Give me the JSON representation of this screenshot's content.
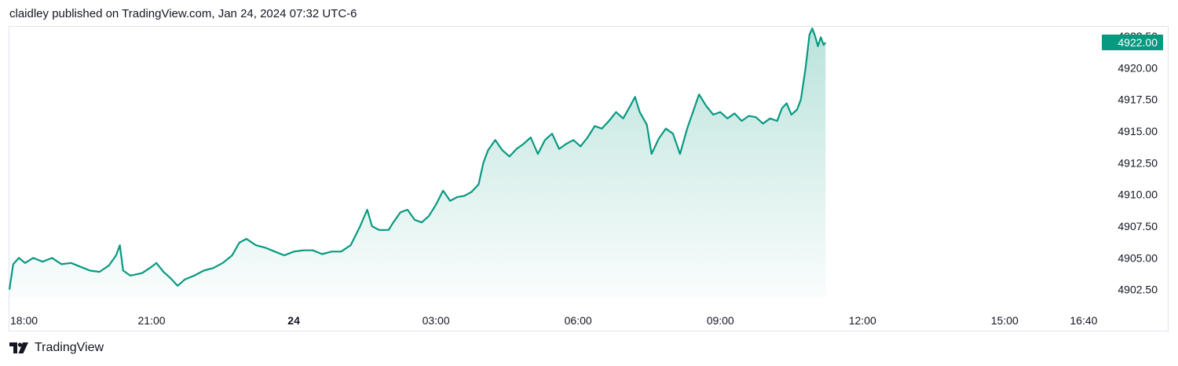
{
  "header": {
    "caption": "claidley published on TradingView.com, Jan 24, 2024 07:32 UTC-6"
  },
  "footer": {
    "brand": "TradingView",
    "logo_icon": "tradingview-logo-icon"
  },
  "colors": {
    "line": "#089981",
    "area_top": "rgba(8,153,129,0.28)",
    "area_bottom": "rgba(8,153,129,0.02)",
    "price_label_bg": "#089981",
    "price_label_text": "#ffffff",
    "axis_text": "#131722",
    "border": "#e0e3eb"
  },
  "chart_data": {
    "type": "area",
    "title": "",
    "xlabel": "",
    "ylabel": "",
    "grid": false,
    "x_ticks": [
      {
        "label": "18:00",
        "h": 0,
        "bold": false
      },
      {
        "label": "21:00",
        "h": 3,
        "bold": false
      },
      {
        "label": "24",
        "h": 6,
        "bold": true
      },
      {
        "label": "03:00",
        "h": 9,
        "bold": false
      },
      {
        "label": "06:00",
        "h": 12,
        "bold": false
      },
      {
        "label": "09:00",
        "h": 15,
        "bold": false
      },
      {
        "label": "12:00",
        "h": 18,
        "bold": false
      },
      {
        "label": "15:00",
        "h": 21,
        "bold": false
      },
      {
        "label": "16:40",
        "h": 22.667,
        "bold": false
      }
    ],
    "x_axis_unit_note_hours_from_1800": true,
    "xlim": [
      0,
      23.0
    ],
    "y_ticks": [
      "4902.50",
      "4905.00",
      "4907.50",
      "4910.00",
      "4912.50",
      "4915.00",
      "4917.50",
      "4920.00",
      "4922.50"
    ],
    "ylim": [
      4901.8,
      4923.3
    ],
    "last_price": "4922.00",
    "last_price_value": 4922.0,
    "series": [
      {
        "points": [
          [
            0.0,
            4902.5
          ],
          [
            0.08,
            4904.5
          ],
          [
            0.2,
            4905.0
          ],
          [
            0.33,
            4904.6
          ],
          [
            0.5,
            4905.0
          ],
          [
            0.7,
            4904.7
          ],
          [
            0.9,
            4905.0
          ],
          [
            1.1,
            4904.5
          ],
          [
            1.3,
            4904.6
          ],
          [
            1.5,
            4904.3
          ],
          [
            1.7,
            4904.0
          ],
          [
            1.9,
            4903.9
          ],
          [
            2.1,
            4904.4
          ],
          [
            2.25,
            4905.2
          ],
          [
            2.33,
            4906.0
          ],
          [
            2.4,
            4904.0
          ],
          [
            2.55,
            4903.6
          ],
          [
            2.8,
            4903.8
          ],
          [
            3.0,
            4904.3
          ],
          [
            3.1,
            4904.6
          ],
          [
            3.25,
            4903.9
          ],
          [
            3.4,
            4903.4
          ],
          [
            3.55,
            4902.8
          ],
          [
            3.7,
            4903.3
          ],
          [
            3.9,
            4903.6
          ],
          [
            4.1,
            4904.0
          ],
          [
            4.3,
            4904.2
          ],
          [
            4.5,
            4904.6
          ],
          [
            4.7,
            4905.2
          ],
          [
            4.85,
            4906.2
          ],
          [
            5.0,
            4906.5
          ],
          [
            5.2,
            4906.0
          ],
          [
            5.4,
            4905.8
          ],
          [
            5.6,
            4905.5
          ],
          [
            5.8,
            4905.2
          ],
          [
            6.0,
            4905.5
          ],
          [
            6.2,
            4905.6
          ],
          [
            6.4,
            4905.6
          ],
          [
            6.6,
            4905.3
          ],
          [
            6.8,
            4905.5
          ],
          [
            7.0,
            4905.5
          ],
          [
            7.2,
            4906.0
          ],
          [
            7.4,
            4907.5
          ],
          [
            7.55,
            4908.8
          ],
          [
            7.65,
            4907.5
          ],
          [
            7.8,
            4907.2
          ],
          [
            8.0,
            4907.2
          ],
          [
            8.1,
            4907.8
          ],
          [
            8.25,
            4908.6
          ],
          [
            8.4,
            4908.8
          ],
          [
            8.55,
            4908.0
          ],
          [
            8.7,
            4907.8
          ],
          [
            8.85,
            4908.3
          ],
          [
            9.0,
            4909.2
          ],
          [
            9.15,
            4910.3
          ],
          [
            9.3,
            4909.5
          ],
          [
            9.45,
            4909.8
          ],
          [
            9.6,
            4909.9
          ],
          [
            9.75,
            4910.2
          ],
          [
            9.9,
            4910.8
          ],
          [
            10.0,
            4912.5
          ],
          [
            10.1,
            4913.5
          ],
          [
            10.25,
            4914.3
          ],
          [
            10.4,
            4913.5
          ],
          [
            10.55,
            4913.0
          ],
          [
            10.7,
            4913.6
          ],
          [
            10.85,
            4914.0
          ],
          [
            11.0,
            4914.5
          ],
          [
            11.15,
            4913.2
          ],
          [
            11.3,
            4914.3
          ],
          [
            11.45,
            4914.8
          ],
          [
            11.6,
            4913.6
          ],
          [
            11.75,
            4914.0
          ],
          [
            11.9,
            4914.3
          ],
          [
            12.05,
            4913.8
          ],
          [
            12.2,
            4914.5
          ],
          [
            12.35,
            4915.4
          ],
          [
            12.5,
            4915.2
          ],
          [
            12.65,
            4915.8
          ],
          [
            12.8,
            4916.5
          ],
          [
            12.95,
            4916.0
          ],
          [
            13.1,
            4917.0
          ],
          [
            13.2,
            4917.7
          ],
          [
            13.3,
            4916.5
          ],
          [
            13.45,
            4915.5
          ],
          [
            13.55,
            4913.2
          ],
          [
            13.7,
            4914.4
          ],
          [
            13.85,
            4915.2
          ],
          [
            14.0,
            4914.8
          ],
          [
            14.15,
            4913.2
          ],
          [
            14.3,
            4915.2
          ],
          [
            14.45,
            4916.8
          ],
          [
            14.55,
            4917.9
          ],
          [
            14.7,
            4917.0
          ],
          [
            14.85,
            4916.3
          ],
          [
            15.0,
            4916.5
          ],
          [
            15.15,
            4916.0
          ],
          [
            15.3,
            4916.4
          ],
          [
            15.45,
            4915.8
          ],
          [
            15.6,
            4916.2
          ],
          [
            15.75,
            4916.1
          ],
          [
            15.9,
            4915.6
          ],
          [
            16.05,
            4916.0
          ],
          [
            16.2,
            4915.8
          ],
          [
            16.3,
            4916.8
          ],
          [
            16.4,
            4917.2
          ],
          [
            16.5,
            4916.3
          ],
          [
            16.62,
            4916.7
          ],
          [
            16.7,
            4917.5
          ],
          [
            16.8,
            4920.0
          ],
          [
            16.88,
            4922.6
          ],
          [
            16.94,
            4923.1
          ],
          [
            17.0,
            4922.5
          ],
          [
            17.06,
            4921.7
          ],
          [
            17.12,
            4922.4
          ],
          [
            17.18,
            4921.8
          ],
          [
            17.22,
            4922.0
          ]
        ]
      }
    ]
  }
}
